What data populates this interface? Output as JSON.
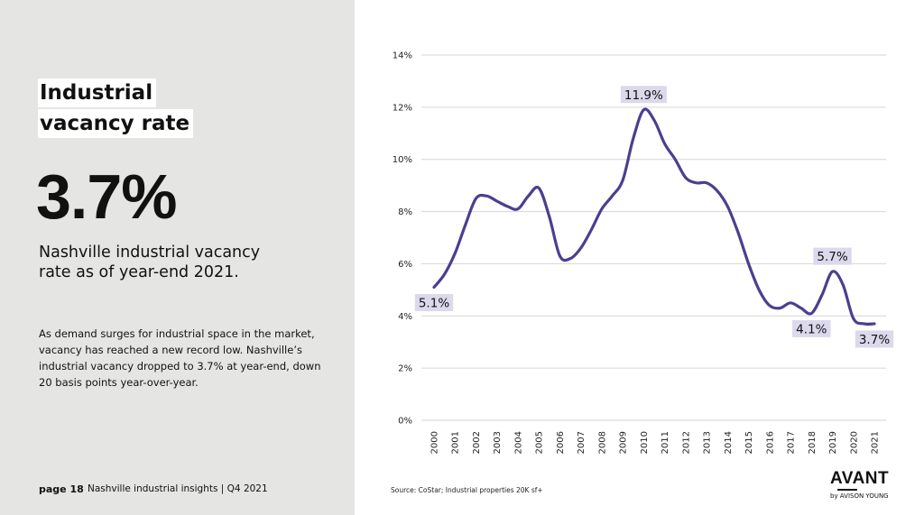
{
  "left": {
    "title_line1": "Industrial",
    "title_line2": "vacancy rate",
    "big_number": "3.7%",
    "subtitle": "Nashville industrial vacancy rate as of year-end 2021.",
    "description": "As demand surges for industrial space in the market, vacancy has reached a new record low. Nashville’s industrial vacancy dropped to 3.7% at year-end, down 20 basis points year-over-year."
  },
  "footer": {
    "page_label": "page 18",
    "publication": "Nashville industrial insights | Q4 2021",
    "source": "Source: CoStar; Industrial properties 20K sf+"
  },
  "logo": {
    "main": "AVANT",
    "sub": "by AVISON YOUNG"
  },
  "colors": {
    "line": "#4b3f8f",
    "label_bg": "#dcd9ec",
    "grid": "#d6d6d6",
    "panel_bg": "#e5e5e3"
  },
  "chart_data": {
    "type": "line",
    "title": "",
    "xlabel": "",
    "ylabel": "",
    "ylim": [
      0,
      14
    ],
    "y_ticks": [
      0,
      2,
      4,
      6,
      8,
      10,
      12,
      14
    ],
    "y_tick_labels": [
      "0%",
      "2%",
      "4%",
      "6%",
      "8%",
      "10%",
      "12%",
      "14%"
    ],
    "grid": true,
    "curve_points": {
      "x": [
        2000,
        2000.5,
        2001,
        2001.5,
        2002,
        2002.5,
        2003,
        2003.5,
        2004,
        2004.5,
        2005,
        2005.5,
        2006,
        2006.5,
        2007,
        2007.5,
        2008,
        2008.5,
        2009,
        2009.5,
        2010,
        2010.5,
        2011,
        2011.5,
        2012,
        2012.5,
        2013,
        2013.5,
        2014,
        2014.5,
        2015,
        2015.5,
        2016,
        2016.5,
        2017,
        2017.5,
        2018,
        2018.5,
        2019,
        2019.5,
        2020,
        2020.5,
        2021
      ],
      "y": [
        5.1,
        5.6,
        6.4,
        7.5,
        8.5,
        8.6,
        8.4,
        8.2,
        8.1,
        8.6,
        8.9,
        7.8,
        6.3,
        6.2,
        6.6,
        7.3,
        8.1,
        8.6,
        9.2,
        10.8,
        11.9,
        11.5,
        10.6,
        10.0,
        9.3,
        9.1,
        9.1,
        8.8,
        8.2,
        7.2,
        6.0,
        5.0,
        4.4,
        4.3,
        4.5,
        4.3,
        4.1,
        4.8,
        5.7,
        5.2,
        3.9,
        3.7,
        3.7
      ]
    },
    "categories": [
      "2000",
      "2001",
      "2002",
      "2003",
      "2004",
      "2005",
      "2006",
      "2007",
      "2008",
      "2009",
      "2010",
      "2011",
      "2012",
      "2013",
      "2014",
      "2015",
      "2016",
      "2017",
      "2018",
      "2019",
      "2020",
      "2021"
    ],
    "series": [
      {
        "values": [
          5.1,
          6.4,
          8.5,
          8.4,
          8.1,
          8.9,
          6.3,
          6.6,
          8.1,
          9.2,
          11.9,
          10.6,
          9.3,
          9.1,
          8.2,
          6.0,
          4.4,
          4.5,
          4.1,
          5.7,
          3.9,
          3.7
        ]
      }
    ],
    "annotations": [
      {
        "x": 2000,
        "y": 5.1,
        "label": "5.1%",
        "position": "below"
      },
      {
        "x": 2010,
        "y": 11.9,
        "label": "11.9%",
        "position": "above"
      },
      {
        "x": 2018,
        "y": 4.1,
        "label": "4.1%",
        "position": "below"
      },
      {
        "x": 2019,
        "y": 5.7,
        "label": "5.7%",
        "position": "above"
      },
      {
        "x": 2021,
        "y": 3.7,
        "label": "3.7%",
        "position": "below"
      }
    ]
  }
}
